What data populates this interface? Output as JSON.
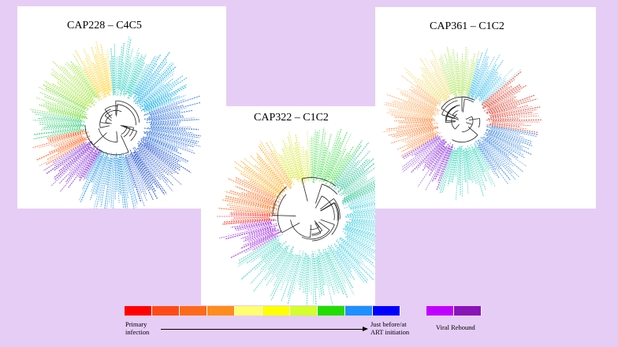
{
  "panels": [
    {
      "id": "p1",
      "title": "CAP228 – C4C5"
    },
    {
      "id": "p2",
      "title": "CAP322 – C1C2"
    },
    {
      "id": "p3",
      "title": "CAP361 – C1C2"
    }
  ],
  "legend": {
    "gradient_colors": [
      "#ff0000",
      "#ff4a18",
      "#ff6a1a",
      "#ff8c1c",
      "#ffff70",
      "#ffff00",
      "#d4ff2a",
      "#22dd00",
      "#1e90ff",
      "#0000ff"
    ],
    "rebound_colors": [
      "#c000ff",
      "#8a14b8"
    ],
    "primary_label_line1": "Primary",
    "primary_label_line2": "infection",
    "art_label_line1": "Just before/at",
    "art_label_line2": "ART initiation",
    "rebound_label": "Viral Rebound"
  }
}
